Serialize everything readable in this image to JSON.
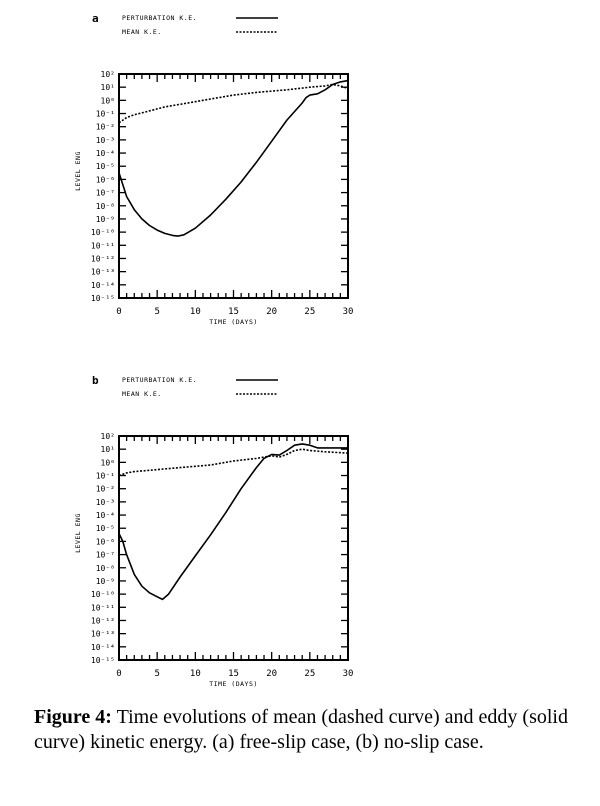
{
  "chart_data": [
    {
      "type": "line",
      "panel_label": "a",
      "xlabel": "TIME (DAYS)",
      "ylabel": "LEVEL ENG",
      "xlim": [
        0,
        30
      ],
      "ylim": [
        -15,
        2
      ],
      "yscale": "log",
      "x_ticks": [
        "0",
        "5",
        "10",
        "15",
        "20",
        "25",
        "30"
      ],
      "y_ticks": [
        "10²",
        "10¹",
        "10⁰",
        "10⁻¹",
        "10⁻²",
        "10⁻³",
        "10⁻⁴",
        "10⁻⁵",
        "10⁻⁶",
        "10⁻⁷",
        "10⁻⁸",
        "10⁻⁹",
        "10⁻¹⁰",
        "10⁻¹¹",
        "10⁻¹²",
        "10⁻¹³",
        "10⁻¹⁴",
        "10⁻¹⁵"
      ],
      "legend": "top-left",
      "series": [
        {
          "name": "PERTURBATION K.E.",
          "style": "solid",
          "x": [
            0,
            1,
            2,
            3,
            4,
            5,
            6,
            7,
            7.7,
            8.5,
            10,
            12,
            14,
            16,
            18,
            20,
            22,
            24,
            24.5,
            25,
            26,
            27,
            28,
            29,
            30
          ],
          "log10_y": [
            -5.5,
            -7.3,
            -8.3,
            -9.0,
            -9.5,
            -9.85,
            -10.1,
            -10.25,
            -10.3,
            -10.2,
            -9.7,
            -8.7,
            -7.5,
            -6.2,
            -4.7,
            -3.1,
            -1.5,
            -0.2,
            0.2,
            0.4,
            0.5,
            0.8,
            1.2,
            1.4,
            1.5
          ]
        },
        {
          "name": "MEAN K.E.",
          "style": "dashed",
          "x": [
            0,
            1,
            2,
            4,
            6,
            8,
            10,
            12,
            15,
            18,
            20,
            22,
            25,
            27,
            28,
            29,
            30
          ],
          "log10_y": [
            -1.7,
            -1.3,
            -1.1,
            -0.8,
            -0.5,
            -0.3,
            -0.1,
            0.1,
            0.4,
            0.6,
            0.7,
            0.8,
            1.0,
            1.1,
            1.2,
            1.1,
            0.9
          ]
        }
      ]
    },
    {
      "type": "line",
      "panel_label": "b",
      "xlabel": "TIME (DAYS)",
      "ylabel": "LEVEL ENG",
      "xlim": [
        0,
        30
      ],
      "ylim": [
        -15,
        2
      ],
      "yscale": "log",
      "x_ticks": [
        "0",
        "5",
        "10",
        "15",
        "20",
        "25",
        "30"
      ],
      "y_ticks": [
        "10²",
        "10¹",
        "10⁰",
        "10⁻¹",
        "10⁻²",
        "10⁻³",
        "10⁻⁴",
        "10⁻⁵",
        "10⁻⁶",
        "10⁻⁷",
        "10⁻⁸",
        "10⁻⁹",
        "10⁻¹⁰",
        "10⁻¹¹",
        "10⁻¹²",
        "10⁻¹³",
        "10⁻¹⁴",
        "10⁻¹⁵"
      ],
      "legend": "top-left",
      "series": [
        {
          "name": "PERTURBATION K.E.",
          "style": "solid",
          "x": [
            0,
            0.5,
            1,
            2,
            3,
            4,
            5,
            5.7,
            6.5,
            8,
            10,
            12,
            14,
            16,
            18,
            19,
            20,
            21,
            22,
            23,
            24,
            25,
            26,
            28,
            30
          ],
          "log10_y": [
            -5.4,
            -6.0,
            -7.0,
            -8.5,
            -9.4,
            -9.9,
            -10.2,
            -10.4,
            -10.0,
            -8.7,
            -7.1,
            -5.5,
            -3.8,
            -2.0,
            -0.4,
            0.3,
            0.6,
            0.55,
            0.9,
            1.3,
            1.4,
            1.3,
            1.1,
            1.1,
            1.1
          ]
        },
        {
          "name": "MEAN K.E.",
          "style": "dashed",
          "x": [
            0,
            1,
            2,
            4,
            6,
            8,
            10,
            12,
            15,
            18,
            20,
            21,
            22,
            23,
            24,
            25,
            27,
            30
          ],
          "log10_y": [
            -1.0,
            -0.8,
            -0.7,
            -0.6,
            -0.5,
            -0.4,
            -0.3,
            -0.2,
            0.1,
            0.3,
            0.5,
            0.4,
            0.6,
            0.9,
            1.0,
            0.9,
            0.8,
            0.7
          ]
        }
      ]
    }
  ],
  "caption": {
    "label": "Figure 4:",
    "text": " Time evolutions of mean (dashed curve) and eddy (solid curve) kinetic energy.  (a) free-slip case, (b) no-slip case."
  }
}
